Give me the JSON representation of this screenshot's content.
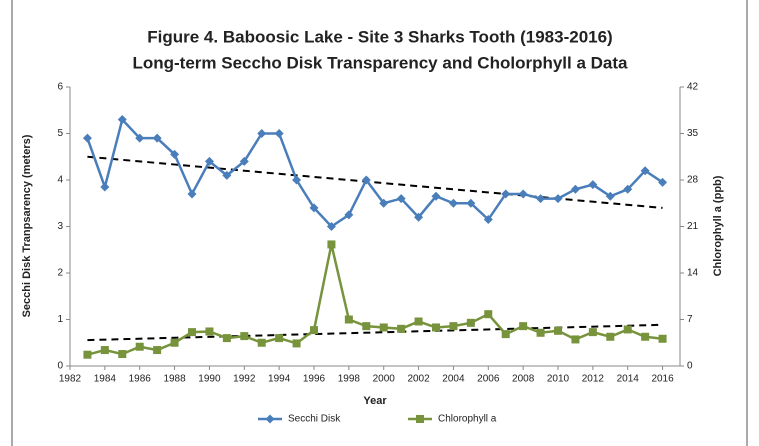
{
  "chart_data": {
    "type": "line",
    "title": "Figure 4. Baboosic Lake - Site 3 Sharks Tooth (1983-2016)",
    "subtitle": "Long-term Seccho Disk Transparency and Cholorphyll a Data",
    "x_label": "Year",
    "y_label": "Secchi Disk Tranpsarency (meters)",
    "y2_label": "Chlorophyll a (ppb)",
    "x": [
      1983,
      1984,
      1985,
      1986,
      1987,
      1988,
      1989,
      1990,
      1991,
      1992,
      1993,
      1994,
      1995,
      1996,
      1997,
      1998,
      1999,
      2000,
      2001,
      2002,
      2003,
      2004,
      2005,
      2006,
      2007,
      2008,
      2009,
      2010,
      2011,
      2012,
      2013,
      2014,
      2015,
      2016
    ],
    "series": [
      {
        "name": "Secchi Disk",
        "color": "#4a7ebb",
        "marker": "diamond",
        "values": [
          4.9,
          3.85,
          5.3,
          4.9,
          4.9,
          4.55,
          3.7,
          4.4,
          4.1,
          4.4,
          5.0,
          5.0,
          4.0,
          3.4,
          3.0,
          3.25,
          4.0,
          3.5,
          3.6,
          3.2,
          3.65,
          3.5,
          3.5,
          3.15,
          3.7,
          3.7,
          3.6,
          3.6,
          3.8,
          3.9,
          3.65,
          3.8,
          4.2,
          3.95
        ],
        "trend_x": [
          1983,
          2016
        ],
        "trend": [
          4.5,
          3.4
        ]
      },
      {
        "name": "Chlorophyll a",
        "color": "#77933c",
        "marker": "square",
        "axis": "y2",
        "values": [
          1.7,
          2.4,
          1.8,
          2.9,
          2.4,
          3.5,
          5.1,
          5.2,
          4.2,
          4.5,
          3.5,
          4.2,
          3.4,
          5.4,
          18.3,
          7.0,
          6.0,
          5.8,
          5.6,
          6.7,
          5.8,
          6.0,
          6.5,
          7.8,
          4.8,
          6.0,
          5.0,
          5.3,
          4.0,
          5.1,
          4.4,
          5.5,
          4.4,
          4.1
        ],
        "trend_x": [
          1983,
          2016
        ],
        "trend": [
          3.9,
          6.2
        ]
      }
    ],
    "xlim": [
      1982,
      2017
    ],
    "xticks": [
      1982,
      1984,
      1986,
      1988,
      1990,
      1992,
      1994,
      1996,
      1998,
      2000,
      2002,
      2004,
      2006,
      2008,
      2010,
      2012,
      2014,
      2016
    ],
    "ylim": [
      0,
      6
    ],
    "yticks": [
      0,
      1,
      2,
      3,
      4,
      5,
      6
    ],
    "y2lim": [
      0,
      42
    ],
    "y2ticks": [
      0,
      7,
      14,
      21,
      28,
      35,
      42
    ],
    "legend": "bottom"
  }
}
